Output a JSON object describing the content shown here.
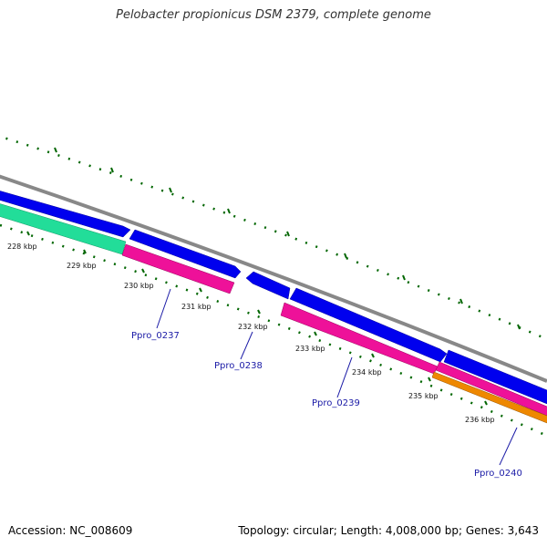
{
  "title": "Pelobacter propionicus DSM 2379, complete genome",
  "footer": {
    "accession": "Accession: NC_008609",
    "summary": "Topology: circular; Length: 4,008,000 bp; Genes: 3,643"
  },
  "kbp_ticks": [
    "228 kbp",
    "229 kbp",
    "230 kbp",
    "231 kbp",
    "232 kbp",
    "233 kbp",
    "234 kbp",
    "235 kbp",
    "236 kbp"
  ],
  "gene_labels": [
    {
      "name": "Ppro_0237"
    },
    {
      "name": "Ppro_0238"
    },
    {
      "name": "Ppro_0239"
    },
    {
      "name": "Ppro_0240"
    }
  ],
  "colors": {
    "backbone": "#888888",
    "forward_gene": "#0000ee",
    "pink_feature": "#ee1199",
    "green_feature": "#22dd99",
    "orange_feature": "#ee8800",
    "tick_green": "#006600",
    "label_blue": "#1a1aa6"
  }
}
